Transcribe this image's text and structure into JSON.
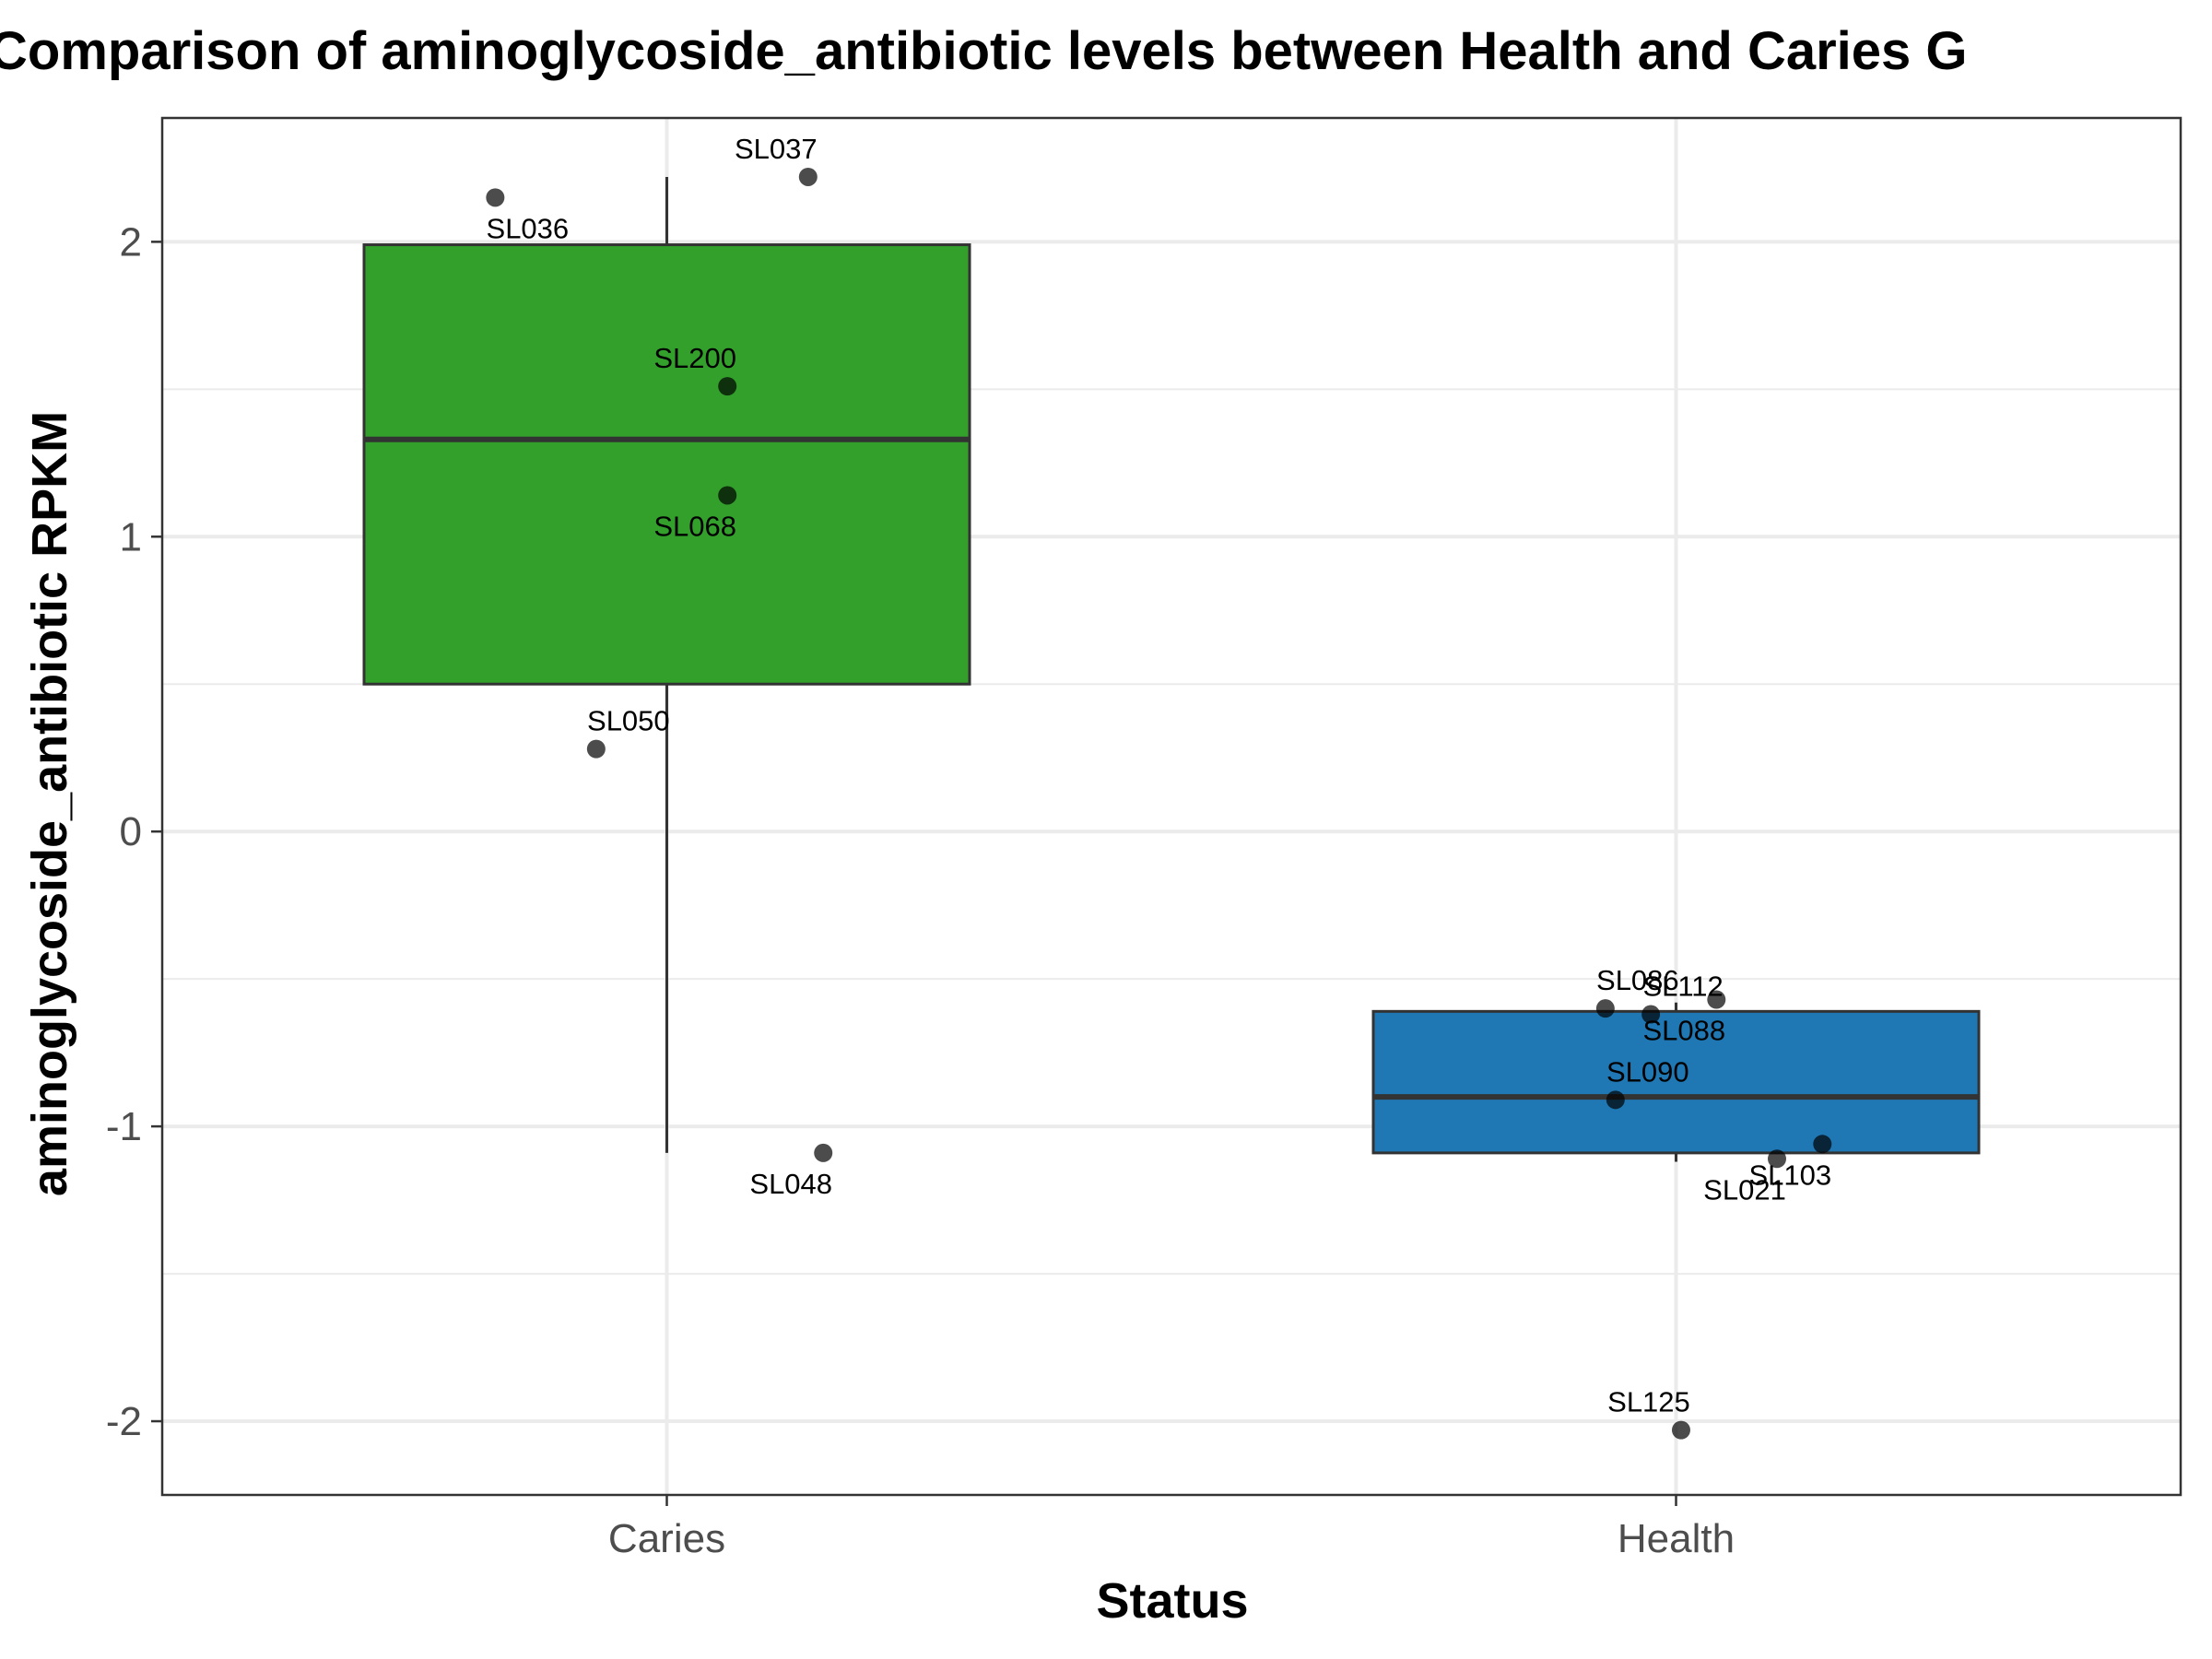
{
  "chart_data": {
    "type": "box",
    "title": "Comparison of aminoglycoside_antibiotic levels between Health and Caries G",
    "xlabel": "Status",
    "ylabel": "aminoglycoside_antibiotic RPKM",
    "ylim": [
      -2.25,
      2.42
    ],
    "yticks": [
      -2,
      -1,
      0,
      1,
      2
    ],
    "categories": [
      "Caries",
      "Health"
    ],
    "grid": true,
    "boxes": [
      {
        "category": "Caries",
        "color": "#33a02c",
        "q1": 0.5,
        "median": 1.33,
        "q3": 1.99,
        "whisker_low": -1.09,
        "whisker_high": 2.22
      },
      {
        "category": "Health",
        "color": "#1f78b4",
        "q1": -1.09,
        "median": -0.9,
        "q3": -0.61,
        "whisker_low": -1.12,
        "whisker_high": -0.58
      }
    ],
    "points": [
      {
        "category": "Caries",
        "label": "SL037",
        "jitter": 0.14,
        "y": 2.22
      },
      {
        "category": "Caries",
        "label": "SL036",
        "jitter": -0.17,
        "y": 2.15
      },
      {
        "category": "Caries",
        "label": "SL200",
        "jitter": 0.06,
        "y": 1.51
      },
      {
        "category": "Caries",
        "label": "SL068",
        "jitter": 0.06,
        "y": 1.14
      },
      {
        "category": "Caries",
        "label": "SL050",
        "jitter": -0.07,
        "y": 0.28
      },
      {
        "category": "Caries",
        "label": "SL048",
        "jitter": 0.155,
        "y": -1.09
      },
      {
        "category": "Health",
        "label": "SL086",
        "jitter": -0.07,
        "y": -0.6
      },
      {
        "category": "Health",
        "label": "SL088",
        "jitter": 0.04,
        "y": -0.57
      },
      {
        "category": "Health",
        "label": "SL112",
        "jitter": -0.025,
        "y": -0.62
      },
      {
        "category": "Health",
        "label": "SL103",
        "jitter": 0.145,
        "y": -1.06
      },
      {
        "category": "Health",
        "label": "SL090",
        "jitter": -0.06,
        "y": -0.91
      },
      {
        "category": "Health",
        "label": "SL021",
        "jitter": 0.1,
        "y": -1.11
      },
      {
        "category": "Health",
        "label": "SL125",
        "jitter": 0.005,
        "y": -2.03
      }
    ]
  }
}
